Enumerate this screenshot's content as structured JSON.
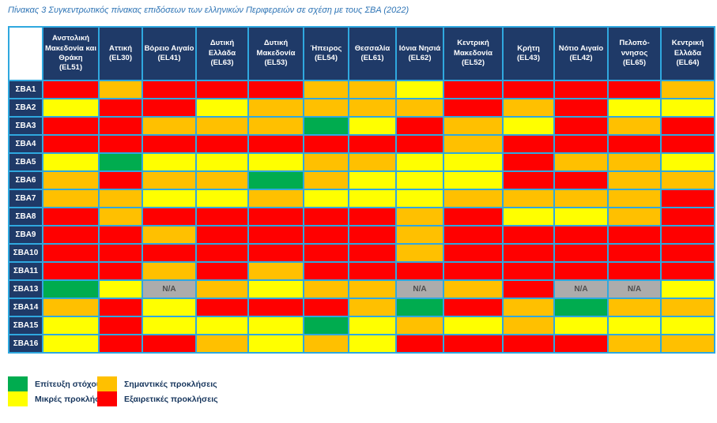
{
  "title": "Πίνακας 3 Συγκεντρωτικός πίνακας επιδόσεων των ελληνικών Περιφερειών σε σχέση με τους ΣΒΑ (2022)",
  "na_label": "N/A",
  "colors": {
    "red": "#FF0000",
    "orange": "#FFC000",
    "yellow": "#FFFF00",
    "green": "#00AC4F",
    "na": "#ACACAC",
    "header_bg": "#1F3A68",
    "border": "#2FA8DF",
    "title_text": "#2E74B5",
    "legend_text": "#17365D",
    "na_text": "#4D4D4D"
  },
  "legend": [
    {
      "key": "green",
      "label": "Επίτευξη στόχου"
    },
    {
      "key": "yellow",
      "label": "Μικρές προκλήσεις"
    },
    {
      "key": "orange",
      "label": "Σημαντικές προκλήσεις"
    },
    {
      "key": "red",
      "label": "Εξαιρετικές προκλήσεις"
    }
  ],
  "chart_data": {
    "type": "heatmap",
    "title": "Πίνακας 3 Συγκεντρωτικός πίνακας επιδόσεων των ελληνικών Περιφερειών σε σχέση με τους ΣΒΑ (2022)",
    "value_meaning": {
      "green": "Επίτευξη στόχου",
      "yellow": "Μικρές προκλήσεις",
      "orange": "Σημαντικές προκλήσεις",
      "red": "Εξαιρετικές προκλήσεις",
      "na": "N/A"
    },
    "columns": [
      {
        "name": "Ανστολική Μακεδονία και Θράκη",
        "code": "(EL51)"
      },
      {
        "name": "Αττική",
        "code": "(EL30)"
      },
      {
        "name": "Βόρειο Αιγαίο",
        "code": "(EL41)"
      },
      {
        "name": "Δυτική Ελλάδα",
        "code": "(EL63)"
      },
      {
        "name": "Δυτική Μακεδονία",
        "code": "(EL53)"
      },
      {
        "name": "Ήπειρος",
        "code": "(EL54)"
      },
      {
        "name": "Θεσσαλία",
        "code": "(EL61)"
      },
      {
        "name": "Ιόνια Νησιά",
        "code": "(EL62)"
      },
      {
        "name": "Κεντρική Μακεδονία",
        "code": "(EL52)"
      },
      {
        "name": "Κρήτη",
        "code": "(EL43)"
      },
      {
        "name": "Νότιο Αιγαίο",
        "code": "(EL42)"
      },
      {
        "name": "Πελοπό-ννησος",
        "code": "(EL65)"
      },
      {
        "name": "Κεντρική Ελλάδα",
        "code": "(EL64)"
      }
    ],
    "rows": [
      "ΣΒΑ1",
      "ΣΒΑ2",
      "ΣΒΑ3",
      "ΣΒΑ4",
      "ΣΒΑ5",
      "ΣΒΑ6",
      "ΣΒΑ7",
      "ΣΒΑ8",
      "ΣΒΑ9",
      "ΣΒΑ10",
      "ΣΒΑ11",
      "ΣΒΑ13",
      "ΣΒΑ14",
      "ΣΒΑ15",
      "ΣΒΑ16"
    ],
    "values": [
      [
        "red",
        "orange",
        "red",
        "red",
        "red",
        "orange",
        "orange",
        "yellow",
        "red",
        "red",
        "red",
        "red",
        "orange"
      ],
      [
        "yellow",
        "red",
        "red",
        "yellow",
        "orange",
        "orange",
        "orange",
        "orange",
        "red",
        "orange",
        "red",
        "yellow",
        "yellow"
      ],
      [
        "red",
        "red",
        "orange",
        "orange",
        "orange",
        "green",
        "yellow",
        "red",
        "orange",
        "yellow",
        "red",
        "orange",
        "red"
      ],
      [
        "red",
        "red",
        "red",
        "red",
        "red",
        "red",
        "red",
        "red",
        "orange",
        "red",
        "red",
        "red",
        "red"
      ],
      [
        "yellow",
        "green",
        "yellow",
        "yellow",
        "yellow",
        "orange",
        "orange",
        "yellow",
        "yellow",
        "red",
        "orange",
        "orange",
        "yellow"
      ],
      [
        "orange",
        "red",
        "orange",
        "orange",
        "green",
        "orange",
        "yellow",
        "yellow",
        "yellow",
        "red",
        "red",
        "orange",
        "orange"
      ],
      [
        "orange",
        "orange",
        "yellow",
        "yellow",
        "orange",
        "yellow",
        "yellow",
        "yellow",
        "orange",
        "orange",
        "orange",
        "orange",
        "red"
      ],
      [
        "red",
        "orange",
        "red",
        "red",
        "red",
        "red",
        "red",
        "orange",
        "red",
        "yellow",
        "yellow",
        "orange",
        "red"
      ],
      [
        "red",
        "red",
        "orange",
        "red",
        "red",
        "red",
        "red",
        "orange",
        "red",
        "red",
        "red",
        "red",
        "red"
      ],
      [
        "red",
        "red",
        "red",
        "red",
        "red",
        "red",
        "red",
        "orange",
        "red",
        "red",
        "red",
        "red",
        "red"
      ],
      [
        "red",
        "red",
        "orange",
        "red",
        "orange",
        "red",
        "red",
        "red",
        "red",
        "red",
        "red",
        "red",
        "red"
      ],
      [
        "green",
        "yellow",
        "na",
        "orange",
        "yellow",
        "orange",
        "orange",
        "na",
        "orange",
        "red",
        "na",
        "na",
        "yellow"
      ],
      [
        "orange",
        "red",
        "yellow",
        "red",
        "red",
        "red",
        "orange",
        "green",
        "red",
        "orange",
        "green",
        "orange",
        "orange"
      ],
      [
        "yellow",
        "red",
        "yellow",
        "yellow",
        "yellow",
        "green",
        "yellow",
        "orange",
        "yellow",
        "orange",
        "yellow",
        "yellow",
        "yellow"
      ],
      [
        "yellow",
        "red",
        "red",
        "orange",
        "yellow",
        "orange",
        "yellow",
        "red",
        "red",
        "red",
        "red",
        "orange",
        "orange"
      ]
    ]
  }
}
